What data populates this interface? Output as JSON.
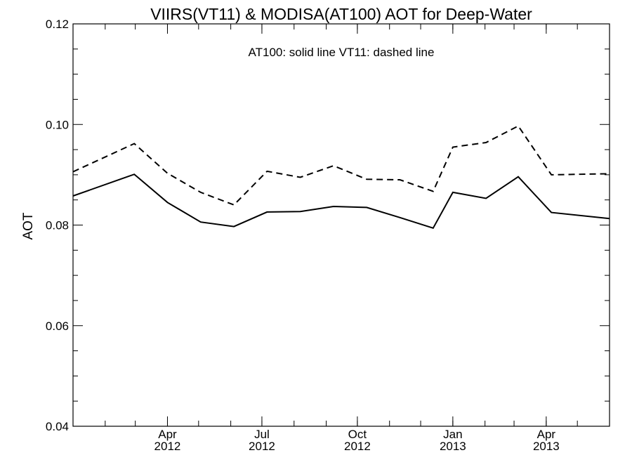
{
  "chart_data": {
    "type": "line",
    "title": "VIIRS(VT11) & MODISA(AT100)  AOT for Deep-Water",
    "annotation": "AT100: solid line   VT11: dashed line",
    "xlabel": "",
    "ylabel": "AOT",
    "xlim": [
      "2012-01-01",
      "2013-06-01"
    ],
    "ylim": [
      0.04,
      0.12
    ],
    "grid": false,
    "x_ticks": [
      {
        "date": "2012-04-01",
        "month": "Apr",
        "year": "2012"
      },
      {
        "date": "2012-07-01",
        "month": "Jul",
        "year": "2012"
      },
      {
        "date": "2012-10-01",
        "month": "Oct",
        "year": "2012"
      },
      {
        "date": "2013-01-01",
        "month": "Jan",
        "year": "2013"
      },
      {
        "date": "2013-04-01",
        "month": "Apr",
        "year": "2013"
      }
    ],
    "y_ticks": [
      "0.04",
      "0.06",
      "0.08",
      "0.10",
      "0.12"
    ],
    "series": [
      {
        "name": "AT100",
        "style": "solid",
        "color": "#000000",
        "x": [
          "2012-01-01",
          "2012-02-29",
          "2012-04-01",
          "2012-05-03",
          "2012-06-04",
          "2012-07-06",
          "2012-08-07",
          "2012-09-08",
          "2012-10-10",
          "2012-11-11",
          "2012-12-13",
          "2013-01-01",
          "2013-02-02",
          "2013-03-05",
          "2013-04-06",
          "2013-06-01"
        ],
        "y": [
          0.0858,
          0.0901,
          0.0845,
          0.0806,
          0.0797,
          0.0826,
          0.0827,
          0.0837,
          0.0835,
          0.0815,
          0.0794,
          0.0865,
          0.0853,
          0.0896,
          0.0825,
          0.0813
        ]
      },
      {
        "name": "VT11",
        "style": "dashed",
        "color": "#000000",
        "x": [
          "2012-01-01",
          "2012-02-29",
          "2012-04-01",
          "2012-05-03",
          "2012-06-04",
          "2012-07-06",
          "2012-08-07",
          "2012-09-08",
          "2012-10-10",
          "2012-11-11",
          "2012-12-13",
          "2013-01-01",
          "2013-02-02",
          "2013-03-05",
          "2013-04-06",
          "2013-06-01"
        ],
        "y": [
          0.0906,
          0.0962,
          0.0903,
          0.0865,
          0.084,
          0.0907,
          0.0895,
          0.0918,
          0.0891,
          0.089,
          0.0867,
          0.0955,
          0.0964,
          0.0997,
          0.09,
          0.0902
        ]
      }
    ]
  }
}
